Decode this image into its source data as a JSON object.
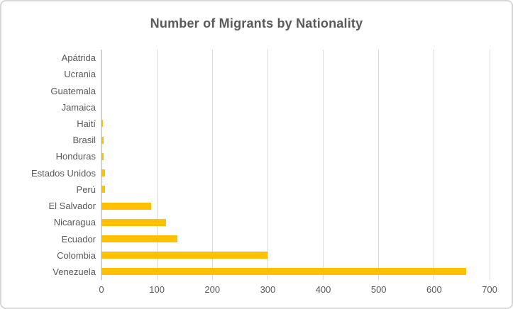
{
  "chart_data": {
    "type": "bar",
    "orientation": "horizontal",
    "title": "Number of Migrants by Nationality",
    "categories": [
      "Apátrida",
      "Ucrania",
      "Guatemala",
      "Jamaica",
      "Haití",
      "Brasil",
      "Honduras",
      "Estados Unidos",
      "Perú",
      "El Salvador",
      "Nicaragua",
      "Ecuador",
      "Colombia",
      "Venezuela"
    ],
    "values": [
      0,
      0,
      0,
      0,
      3,
      4,
      4,
      6,
      6,
      90,
      116,
      137,
      300,
      658
    ],
    "xlabel": "",
    "ylabel": "",
    "xlim": [
      0,
      700
    ],
    "x_ticks": [
      0,
      100,
      200,
      300,
      400,
      500,
      600,
      700
    ],
    "grid": "vertical-gridlines-on",
    "legend": "none",
    "bar_color": "#FFC000"
  },
  "colors": {
    "bar": "#FFC000",
    "grid": "#DBDBDB",
    "axis": "#D2D2D2",
    "text": "#595959",
    "border": "#D8D8D8",
    "background": "#FFFFFF"
  }
}
